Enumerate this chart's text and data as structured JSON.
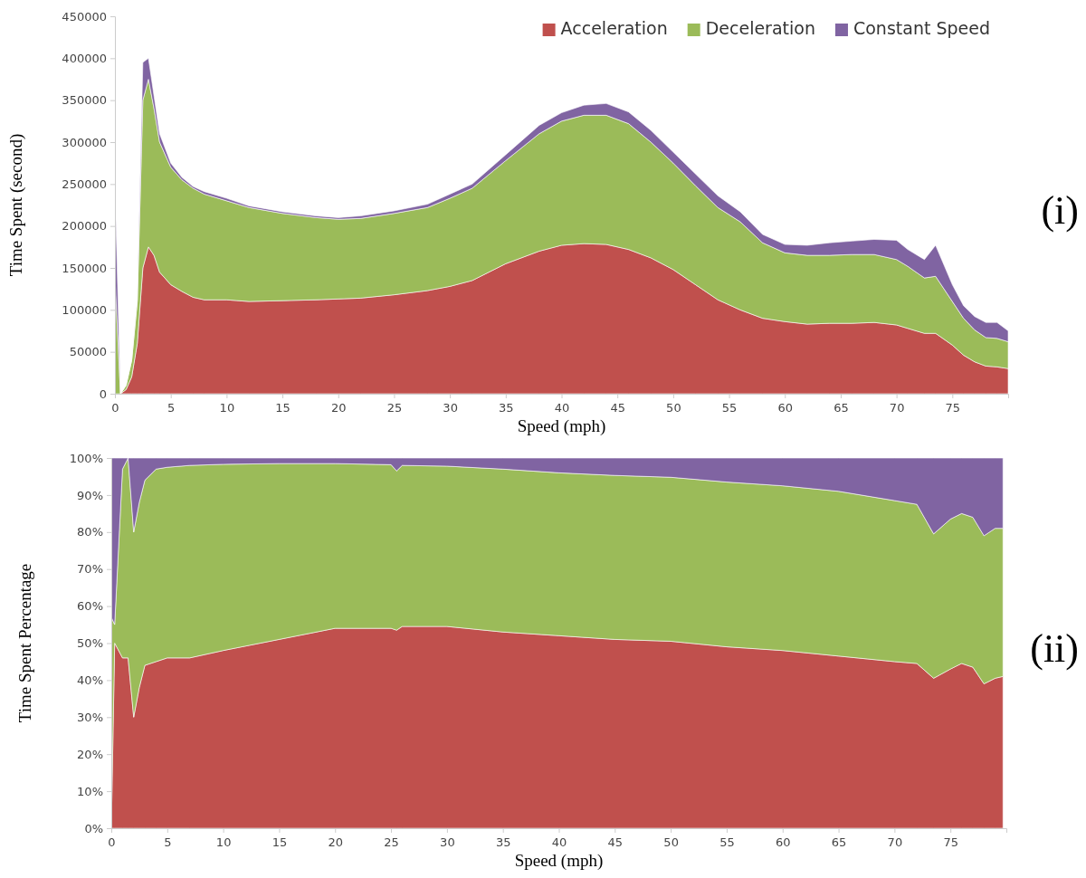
{
  "chart_data": [
    {
      "type": "area",
      "stacked": true,
      "legend": "top right",
      "annotations": [
        "(i)"
      ],
      "xlabel": "Speed (mph)",
      "ylabel": "Time Spent (second)",
      "x": [
        0,
        0.5,
        1,
        1.5,
        2,
        2.5,
        3,
        3.5,
        4,
        5,
        6,
        7,
        8,
        10,
        12,
        15,
        18,
        20,
        22,
        25,
        28,
        30,
        32,
        35,
        38,
        40,
        42,
        44,
        46,
        48,
        50,
        52,
        54,
        56,
        58,
        60,
        62,
        64,
        66,
        68,
        70,
        71,
        72.5,
        73.5,
        75,
        76,
        77,
        78,
        79,
        80
      ],
      "xlim": [
        0,
        80
      ],
      "xticks": [
        0,
        5,
        10,
        15,
        20,
        25,
        30,
        35,
        40,
        45,
        50,
        55,
        60,
        65,
        70,
        75
      ],
      "ylim": [
        0,
        450000
      ],
      "yticks": [
        0,
        50000,
        100000,
        150000,
        200000,
        250000,
        300000,
        350000,
        400000,
        450000
      ],
      "series": [
        {
          "name": "Acceleration",
          "color": "#c0504d",
          "values": [
            0,
            0,
            5000,
            20000,
            60000,
            150000,
            175000,
            165000,
            145000,
            130000,
            122000,
            115000,
            112000,
            112000,
            110000,
            111000,
            112000,
            113000,
            114000,
            118000,
            123000,
            128000,
            135000,
            155000,
            170000,
            177000,
            179000,
            178000,
            172000,
            162000,
            148000,
            130000,
            112000,
            100000,
            90000,
            86000,
            83000,
            84000,
            84000,
            85000,
            82000,
            78000,
            72000,
            72000,
            58000,
            46000,
            38000,
            33000,
            32000,
            30000
          ]
        },
        {
          "name": "Deceleration",
          "color": "#9bbb59",
          "values": [
            140000,
            0,
            5000,
            20000,
            50000,
            200000,
            200000,
            175000,
            155000,
            140000,
            133000,
            130000,
            126000,
            118000,
            112000,
            104000,
            98000,
            95000,
            95000,
            97000,
            99000,
            105000,
            110000,
            123000,
            140000,
            148000,
            153000,
            154000,
            150000,
            138000,
            127000,
            118000,
            110000,
            105000,
            90000,
            82000,
            82000,
            81000,
            82000,
            81000,
            78000,
            74000,
            66000,
            68000,
            52000,
            44000,
            38000,
            34000,
            34000,
            32000
          ]
        },
        {
          "name": "Constant Speed",
          "color": "#8064a2",
          "values": [
            110000,
            0,
            0,
            0,
            2000,
            45000,
            25000,
            15000,
            10000,
            5000,
            3000,
            2000,
            3000,
            3000,
            2000,
            2000,
            2000,
            2000,
            3000,
            3000,
            4000,
            5000,
            5000,
            7000,
            10000,
            10000,
            12000,
            14000,
            14000,
            14000,
            13000,
            14000,
            14000,
            12000,
            10000,
            10000,
            12000,
            15000,
            16000,
            18000,
            23000,
            20000,
            22000,
            37000,
            20000,
            15000,
            16000,
            18000,
            19000,
            13000
          ]
        }
      ]
    },
    {
      "type": "area",
      "stacked": true,
      "legend": false,
      "annotations": [
        "(ii)"
      ],
      "xlabel": "Speed (mph)",
      "ylabel": "Time Spent Percentage",
      "x": [
        0,
        0.3,
        1,
        1.5,
        2,
        2.5,
        3,
        4,
        5,
        7,
        10,
        15,
        20,
        25,
        25.5,
        26,
        30,
        35,
        40,
        45,
        50,
        55,
        60,
        65,
        70,
        72,
        73.5,
        75,
        76,
        77,
        78,
        79,
        79.7
      ],
      "xlim": [
        0,
        80
      ],
      "xticks": [
        0,
        5,
        10,
        15,
        20,
        25,
        30,
        35,
        40,
        45,
        50,
        55,
        60,
        65,
        70,
        75
      ],
      "ylim": [
        0,
        100
      ],
      "yticks": [
        {
          "value": 0,
          "label": "0%"
        },
        {
          "value": 10,
          "label": "10%"
        },
        {
          "value": 20,
          "label": "20%"
        },
        {
          "value": 30,
          "label": "30%"
        },
        {
          "value": 40,
          "label": "40%"
        },
        {
          "value": 50,
          "label": "50%"
        },
        {
          "value": 60,
          "label": "60%"
        },
        {
          "value": 70,
          "label": "70%"
        },
        {
          "value": 80,
          "label": "80%"
        },
        {
          "value": 90,
          "label": "90%"
        },
        {
          "value": 100,
          "label": "100%"
        }
      ],
      "series": [
        {
          "color": "#c0504d",
          "values": [
            0,
            50,
            46,
            46,
            30,
            38,
            44,
            45,
            46,
            46,
            48,
            51,
            54,
            54,
            53.5,
            54.5,
            54.5,
            53,
            52,
            51,
            50.5,
            49,
            48,
            46.5,
            45,
            44.5,
            40.5,
            43,
            44.5,
            43.5,
            39,
            40.5,
            41
          ]
        },
        {
          "color": "#9bbb59",
          "values": [
            57,
            5,
            51,
            54,
            50,
            50,
            50,
            52,
            51.5,
            52,
            50.3,
            47.5,
            44.5,
            44.2,
            43,
            43.5,
            43.3,
            44,
            44,
            44.3,
            44.3,
            44.5,
            44.5,
            44.5,
            43.5,
            43,
            39,
            40.5,
            40.5,
            40.5,
            40,
            40.5,
            40
          ]
        },
        {
          "color": "#8064a2",
          "values": [
            43,
            45,
            3,
            0,
            20,
            12,
            6,
            3,
            2.5,
            2,
            1.7,
            1.5,
            1.5,
            1.8,
            3.5,
            2,
            2.2,
            3,
            4,
            4.7,
            5.2,
            6.5,
            7.5,
            9,
            11.5,
            12.5,
            20.5,
            16.5,
            15,
            16,
            21,
            19,
            19
          ]
        }
      ]
    }
  ]
}
